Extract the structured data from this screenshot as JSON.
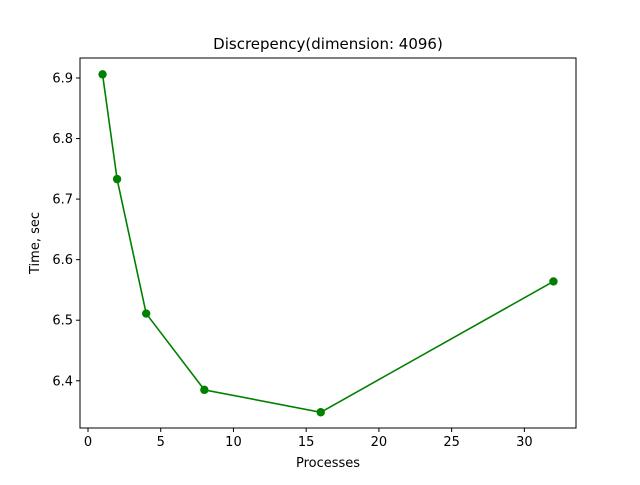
{
  "chart_data": {
    "type": "line",
    "title": "Discrepency(dimension: 4096)",
    "xlabel": "Processes",
    "ylabel": "Time, sec",
    "xlim": [
      -0.55,
      33.55
    ],
    "ylim": [
      6.322,
      6.933
    ],
    "xticks": [
      0,
      5,
      10,
      15,
      20,
      25,
      30
    ],
    "yticks": [
      6.4,
      6.5,
      6.6,
      6.7,
      6.8,
      6.9
    ],
    "grid": false,
    "series": [
      {
        "color": "#008000",
        "marker": "circle",
        "x": [
          1,
          2,
          4,
          8,
          16,
          32
        ],
        "y": [
          6.906,
          6.733,
          6.511,
          6.385,
          6.348,
          6.564
        ]
      }
    ]
  }
}
